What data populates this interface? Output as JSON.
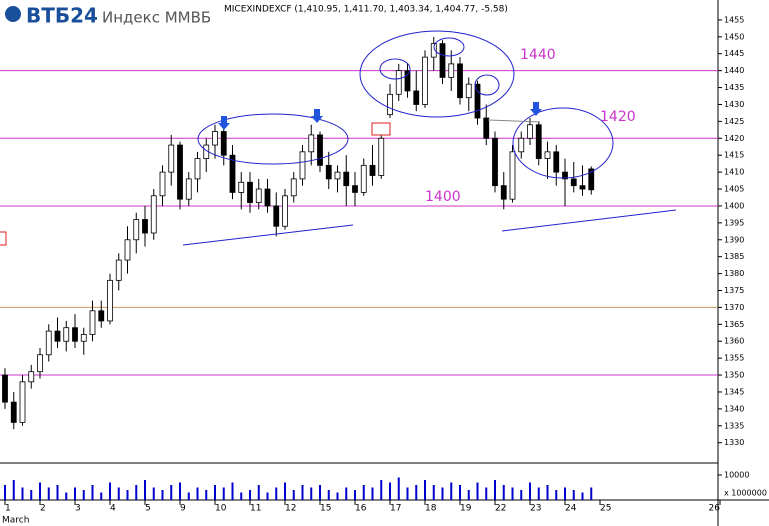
{
  "chart_data": {
    "type": "candlestick",
    "brand": "ВТБ24",
    "title": "Индекс ММВБ",
    "ohlc_header": "MICEXINDEXCF (1,410.95, 1,411.70, 1,403.34, 1,404.77, -5.58)",
    "month": "March",
    "day_labels": [
      "1",
      "2",
      "3",
      "4",
      "5",
      "9",
      "10",
      "11",
      "12",
      "15",
      "16",
      "17",
      "18",
      "19",
      "22",
      "23",
      "24",
      "25",
      "26"
    ],
    "ylim": [
      1324,
      1460
    ],
    "yticks": [
      1330,
      1335,
      1340,
      1345,
      1350,
      1355,
      1360,
      1365,
      1370,
      1375,
      1380,
      1385,
      1390,
      1395,
      1400,
      1405,
      1410,
      1415,
      1420,
      1425,
      1430,
      1435,
      1440,
      1445,
      1450,
      1455
    ],
    "levels": [
      {
        "value": 1440,
        "color": "#cc33cc"
      },
      {
        "value": 1420,
        "color": "#cc33cc"
      },
      {
        "value": 1400,
        "color": "#cc33cc"
      },
      {
        "value": 1370,
        "color": "#cc9966"
      },
      {
        "value": 1350,
        "color": "#cc33cc"
      }
    ],
    "annotations": [
      1440,
      1420,
      1400
    ],
    "candles": [
      [
        1350,
        1352,
        1340,
        1342
      ],
      [
        1342,
        1345,
        1334,
        1336
      ],
      [
        1336,
        1350,
        1335,
        1348
      ],
      [
        1348,
        1353,
        1346,
        1351
      ],
      [
        1351,
        1358,
        1349,
        1356
      ],
      [
        1356,
        1365,
        1354,
        1363
      ],
      [
        1363,
        1367,
        1358,
        1360
      ],
      [
        1360,
        1366,
        1357,
        1364
      ],
      [
        1364,
        1368,
        1358,
        1360
      ],
      [
        1360,
        1364,
        1356,
        1362
      ],
      [
        1362,
        1372,
        1360,
        1369
      ],
      [
        1369,
        1372,
        1364,
        1366
      ],
      [
        1366,
        1380,
        1365,
        1378
      ],
      [
        1378,
        1386,
        1375,
        1384
      ],
      [
        1384,
        1394,
        1380,
        1390
      ],
      [
        1390,
        1398,
        1386,
        1396
      ],
      [
        1396,
        1400,
        1388,
        1392
      ],
      [
        1392,
        1405,
        1390,
        1403
      ],
      [
        1403,
        1412,
        1400,
        1410
      ],
      [
        1410,
        1421,
        1406,
        1418
      ],
      [
        1418,
        1419,
        1399,
        1402
      ],
      [
        1402,
        1410,
        1400,
        1408
      ],
      [
        1408,
        1416,
        1404,
        1414
      ],
      [
        1414,
        1420,
        1410,
        1418
      ],
      [
        1418,
        1424,
        1414,
        1422
      ],
      [
        1422,
        1423,
        1412,
        1415
      ],
      [
        1415,
        1418,
        1402,
        1404
      ],
      [
        1404,
        1410,
        1399,
        1407
      ],
      [
        1407,
        1410,
        1398,
        1401
      ],
      [
        1401,
        1408,
        1399,
        1405
      ],
      [
        1405,
        1408,
        1398,
        1400
      ],
      [
        1400,
        1404,
        1391,
        1394
      ],
      [
        1394,
        1405,
        1393,
        1403
      ],
      [
        1403,
        1410,
        1401,
        1408
      ],
      [
        1408,
        1418,
        1406,
        1416
      ],
      [
        1416,
        1424,
        1412,
        1421
      ],
      [
        1421,
        1422,
        1410,
        1412
      ],
      [
        1412,
        1416,
        1405,
        1408
      ],
      [
        1408,
        1412,
        1404,
        1410
      ],
      [
        1410,
        1415,
        1400,
        1406
      ],
      [
        1406,
        1410,
        1400,
        1404
      ],
      [
        1404,
        1414,
        1403,
        1412
      ],
      [
        1412,
        1418,
        1406,
        1409
      ],
      [
        1409,
        1421,
        1408,
        1420
      ],
      [
        1427,
        1436,
        1426,
        1433
      ],
      [
        1433,
        1442,
        1431,
        1440
      ],
      [
        1440,
        1442,
        1432,
        1434
      ],
      [
        1434,
        1440,
        1428,
        1430
      ],
      [
        1430,
        1446,
        1429,
        1444
      ],
      [
        1444,
        1450,
        1440,
        1448
      ],
      [
        1448,
        1449,
        1436,
        1438
      ],
      [
        1438,
        1446,
        1434,
        1442
      ],
      [
        1442,
        1444,
        1430,
        1432
      ],
      [
        1432,
        1438,
        1428,
        1436
      ],
      [
        1436,
        1437,
        1424,
        1426
      ],
      [
        1426,
        1430,
        1418,
        1420
      ],
      [
        1420,
        1422,
        1404,
        1406
      ],
      [
        1406,
        1410,
        1399,
        1402
      ],
      [
        1402,
        1418,
        1401,
        1416
      ],
      [
        1416,
        1422,
        1414,
        1420
      ],
      [
        1420,
        1426,
        1418,
        1424
      ],
      [
        1424,
        1425,
        1412,
        1414
      ],
      [
        1414,
        1419,
        1408,
        1416
      ],
      [
        1416,
        1418,
        1406,
        1410
      ],
      [
        1410,
        1414,
        1400,
        1408
      ],
      [
        1408,
        1413,
        1404,
        1406
      ],
      [
        1406,
        1412,
        1403,
        1405
      ],
      [
        1410.95,
        1411.7,
        1403.34,
        1404.77
      ]
    ],
    "volume_ylim": [
      0,
      14000
    ],
    "volume_yticks": [
      10000
    ],
    "volume_label": "x 1000000",
    "volumes": [
      6000,
      8000,
      5000,
      4000,
      7000,
      5000,
      6000,
      3000,
      5000,
      4000,
      6000,
      3000,
      7000,
      5000,
      4000,
      6000,
      8000,
      5000,
      4000,
      6000,
      7000,
      3000,
      5000,
      4000,
      6000,
      5000,
      7000,
      3000,
      4000,
      6000,
      3000,
      5000,
      7000,
      4000,
      6000,
      5000,
      6000,
      4000,
      3000,
      5000,
      4000,
      6000,
      5000,
      8000,
      7000,
      9000,
      5000,
      6000,
      8000,
      6000,
      5000,
      7000,
      6000,
      4000,
      7000,
      5000,
      8000,
      6000,
      5000,
      4000,
      7000,
      5000,
      6000,
      4000,
      5000,
      4000,
      3000,
      5000
    ]
  }
}
